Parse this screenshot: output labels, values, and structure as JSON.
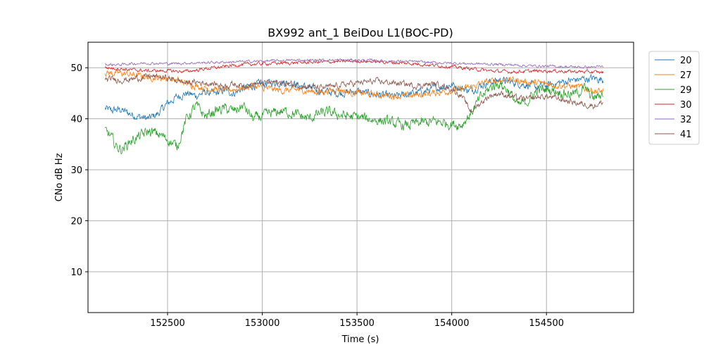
{
  "chart_data": {
    "type": "line",
    "title": "BX992 ant_1 BeiDou L1(BOC-PD)",
    "xlabel": "Time (s)",
    "ylabel": "CNo dB Hz",
    "xlim": [
      152080,
      154960
    ],
    "ylim": [
      2,
      55
    ],
    "xticks": [
      152500,
      153000,
      153500,
      154000,
      154500
    ],
    "yticks": [
      10,
      20,
      30,
      40,
      50
    ],
    "grid": true,
    "legend_position": "outside-right",
    "x_start": 152170,
    "x_end": 154800,
    "series": [
      {
        "name": "20",
        "color": "#1f77b4",
        "points": [
          [
            152170,
            42.0
          ],
          [
            152200,
            41.6
          ],
          [
            152250,
            41.8
          ],
          [
            152300,
            41.0
          ],
          [
            152350,
            40.4
          ],
          [
            152400,
            40.0
          ],
          [
            152450,
            41.0
          ],
          [
            152500,
            43.0
          ],
          [
            152550,
            44.3
          ],
          [
            152600,
            45.0
          ],
          [
            152650,
            44.5
          ],
          [
            152700,
            45.2
          ],
          [
            152750,
            44.8
          ],
          [
            152800,
            45.6
          ],
          [
            152850,
            45.0
          ],
          [
            152900,
            46.0
          ],
          [
            152950,
            46.5
          ],
          [
            153000,
            46.8
          ],
          [
            153050,
            47.0
          ],
          [
            153100,
            47.2
          ],
          [
            153150,
            47.0
          ],
          [
            153200,
            46.5
          ],
          [
            153250,
            46.0
          ],
          [
            153300,
            45.5
          ],
          [
            153350,
            45.2
          ],
          [
            153400,
            45.0
          ],
          [
            153450,
            45.2
          ],
          [
            153500,
            45.4
          ],
          [
            153550,
            45.0
          ],
          [
            153600,
            44.8
          ],
          [
            153650,
            44.5
          ],
          [
            153700,
            44.3
          ],
          [
            153750,
            44.7
          ],
          [
            153800,
            45.0
          ],
          [
            153850,
            45.3
          ],
          [
            153900,
            45.8
          ],
          [
            153950,
            46.3
          ],
          [
            154000,
            46.7
          ],
          [
            154050,
            46.0
          ],
          [
            154100,
            45.5
          ],
          [
            154150,
            46.5
          ],
          [
            154200,
            47.2
          ],
          [
            154250,
            47.6
          ],
          [
            154300,
            47.3
          ],
          [
            154350,
            47.0
          ],
          [
            154400,
            46.6
          ],
          [
            154450,
            46.2
          ],
          [
            154500,
            46.5
          ],
          [
            154550,
            46.9
          ],
          [
            154600,
            47.3
          ],
          [
            154650,
            47.6
          ],
          [
            154700,
            47.8
          ],
          [
            154750,
            47.9
          ],
          [
            154800,
            47.7
          ]
        ],
        "noise": 0.6
      },
      {
        "name": "27",
        "color": "#ff7f0e",
        "points": [
          [
            152170,
            49.0
          ],
          [
            152250,
            48.9
          ],
          [
            152300,
            48.7
          ],
          [
            152350,
            48.4
          ],
          [
            152400,
            48.2
          ],
          [
            152450,
            48.0
          ],
          [
            152500,
            48.0
          ],
          [
            152550,
            47.5
          ],
          [
            152600,
            47.0
          ],
          [
            152650,
            46.5
          ],
          [
            152700,
            46.0
          ],
          [
            152750,
            45.8
          ],
          [
            152800,
            45.5
          ],
          [
            152850,
            45.8
          ],
          [
            152900,
            46.0
          ],
          [
            152950,
            46.5
          ],
          [
            153000,
            46.0
          ],
          [
            153050,
            45.8
          ],
          [
            153100,
            45.5
          ],
          [
            153150,
            45.6
          ],
          [
            153200,
            45.7
          ],
          [
            153250,
            45.4
          ],
          [
            153300,
            45.2
          ],
          [
            153350,
            45.5
          ],
          [
            153400,
            45.8
          ],
          [
            153450,
            45.2
          ],
          [
            153500,
            45.0
          ],
          [
            153550,
            44.9
          ],
          [
            153600,
            44.7
          ],
          [
            153650,
            44.6
          ],
          [
            153700,
            44.5
          ],
          [
            153750,
            44.4
          ],
          [
            153800,
            44.6
          ],
          [
            153850,
            44.8
          ],
          [
            153900,
            45.0
          ],
          [
            153950,
            45.3
          ],
          [
            154000,
            45.5
          ],
          [
            154050,
            45.8
          ],
          [
            154100,
            46.2
          ],
          [
            154150,
            46.8
          ],
          [
            154200,
            47.3
          ],
          [
            154250,
            47.5
          ],
          [
            154300,
            47.7
          ],
          [
            154350,
            47.5
          ],
          [
            154400,
            47.2
          ],
          [
            154450,
            47.0
          ],
          [
            154500,
            46.9
          ],
          [
            154550,
            46.6
          ],
          [
            154600,
            46.5
          ],
          [
            154650,
            46.3
          ],
          [
            154700,
            46.0
          ],
          [
            154750,
            45.5
          ],
          [
            154800,
            45.3
          ]
        ],
        "noise": 0.5
      },
      {
        "name": "29",
        "color": "#2ca02c",
        "points": [
          [
            152170,
            37.8
          ],
          [
            152200,
            36.5
          ],
          [
            152230,
            34.5
          ],
          [
            152260,
            34.0
          ],
          [
            152300,
            35.5
          ],
          [
            152350,
            36.5
          ],
          [
            152400,
            37.5
          ],
          [
            152450,
            37.0
          ],
          [
            152500,
            36.0
          ],
          [
            152550,
            34.5
          ],
          [
            152600,
            40.0
          ],
          [
            152650,
            42.5
          ],
          [
            152700,
            40.5
          ],
          [
            152750,
            41.5
          ],
          [
            152800,
            42.0
          ],
          [
            152850,
            41.5
          ],
          [
            152900,
            42.5
          ],
          [
            152950,
            40.0
          ],
          [
            153000,
            40.5
          ],
          [
            153050,
            41.0
          ],
          [
            153100,
            41.5
          ],
          [
            153150,
            41.2
          ],
          [
            153200,
            40.5
          ],
          [
            153250,
            40.0
          ],
          [
            153300,
            41.0
          ],
          [
            153350,
            41.2
          ],
          [
            153400,
            40.8
          ],
          [
            153450,
            40.5
          ],
          [
            153500,
            40.3
          ],
          [
            153550,
            40.0
          ],
          [
            153600,
            39.8
          ],
          [
            153650,
            39.5
          ],
          [
            153700,
            39.0
          ],
          [
            153750,
            38.6
          ],
          [
            153800,
            39.0
          ],
          [
            153850,
            39.2
          ],
          [
            153900,
            39.4
          ],
          [
            153950,
            39.3
          ],
          [
            154000,
            39.0
          ],
          [
            154050,
            38.8
          ],
          [
            154100,
            41.0
          ],
          [
            154150,
            44.0
          ],
          [
            154200,
            46.0
          ],
          [
            154250,
            47.0
          ],
          [
            154300,
            45.5
          ],
          [
            154350,
            42.5
          ],
          [
            154400,
            43.5
          ],
          [
            154450,
            45.5
          ],
          [
            154500,
            45.8
          ],
          [
            154550,
            45.5
          ],
          [
            154600,
            45.0
          ],
          [
            154650,
            44.8
          ],
          [
            154700,
            46.0
          ],
          [
            154750,
            44.0
          ],
          [
            154800,
            45.0
          ]
        ],
        "noise": 0.8
      },
      {
        "name": "30",
        "color": "#d62728",
        "points": [
          [
            152170,
            50.0
          ],
          [
            152250,
            49.8
          ],
          [
            152300,
            49.6
          ],
          [
            152350,
            49.5
          ],
          [
            152400,
            49.4
          ],
          [
            152450,
            49.4
          ],
          [
            152500,
            49.4
          ],
          [
            152550,
            49.3
          ],
          [
            152600,
            49.3
          ],
          [
            152650,
            49.5
          ],
          [
            152700,
            49.8
          ],
          [
            152750,
            50.0
          ],
          [
            152800,
            50.2
          ],
          [
            152850,
            50.5
          ],
          [
            152900,
            50.6
          ],
          [
            152950,
            50.7
          ],
          [
            153000,
            50.8
          ],
          [
            153100,
            50.9
          ],
          [
            153200,
            51.0
          ],
          [
            153300,
            51.1
          ],
          [
            153400,
            51.2
          ],
          [
            153500,
            51.3
          ],
          [
            153600,
            51.2
          ],
          [
            153700,
            51.0
          ],
          [
            153800,
            50.8
          ],
          [
            153900,
            50.5
          ],
          [
            154000,
            50.2
          ],
          [
            154100,
            49.8
          ],
          [
            154200,
            49.4
          ],
          [
            154300,
            49.2
          ],
          [
            154400,
            49.3
          ],
          [
            154500,
            49.4
          ],
          [
            154600,
            49.3
          ],
          [
            154700,
            49.2
          ],
          [
            154800,
            49.1
          ]
        ],
        "noise": 0.25
      },
      {
        "name": "32",
        "color": "#9467bd",
        "points": [
          [
            152170,
            50.6
          ],
          [
            152250,
            50.6
          ],
          [
            152300,
            50.8
          ],
          [
            152400,
            50.9
          ],
          [
            152500,
            50.8
          ],
          [
            152600,
            50.9
          ],
          [
            152700,
            51.0
          ],
          [
            152800,
            51.1
          ],
          [
            152900,
            51.2
          ],
          [
            153000,
            51.3
          ],
          [
            153100,
            51.4
          ],
          [
            153200,
            51.5
          ],
          [
            153300,
            51.5
          ],
          [
            153400,
            51.5
          ],
          [
            153500,
            51.5
          ],
          [
            153600,
            51.4
          ],
          [
            153700,
            51.3
          ],
          [
            153800,
            51.2
          ],
          [
            153900,
            51.0
          ],
          [
            154000,
            50.9
          ],
          [
            154100,
            50.8
          ],
          [
            154200,
            50.7
          ],
          [
            154300,
            50.6
          ],
          [
            154400,
            50.4
          ],
          [
            154500,
            50.3
          ],
          [
            154600,
            50.2
          ],
          [
            154700,
            50.1
          ],
          [
            154800,
            50.2
          ]
        ],
        "noise": 0.2
      },
      {
        "name": "41",
        "color": "#8c564b",
        "points": [
          [
            152170,
            47.5
          ],
          [
            152200,
            47.8
          ],
          [
            152250,
            47.6
          ],
          [
            152300,
            47.7
          ],
          [
            152350,
            48.0
          ],
          [
            152400,
            48.3
          ],
          [
            152450,
            48.2
          ],
          [
            152500,
            48.0
          ],
          [
            152550,
            47.5
          ],
          [
            152600,
            47.0
          ],
          [
            152650,
            47.2
          ],
          [
            152700,
            47.0
          ],
          [
            152750,
            46.8
          ],
          [
            152800,
            46.5
          ],
          [
            152850,
            46.8
          ],
          [
            152900,
            46.5
          ],
          [
            152950,
            46.8
          ],
          [
            153000,
            47.0
          ],
          [
            153050,
            47.2
          ],
          [
            153100,
            47.0
          ],
          [
            153150,
            46.8
          ],
          [
            153200,
            46.5
          ],
          [
            153250,
            46.3
          ],
          [
            153300,
            46.0
          ],
          [
            153350,
            46.2
          ],
          [
            153400,
            46.5
          ],
          [
            153450,
            46.8
          ],
          [
            153500,
            47.0
          ],
          [
            153550,
            47.2
          ],
          [
            153600,
            47.3
          ],
          [
            153650,
            47.2
          ],
          [
            153700,
            47.0
          ],
          [
            153750,
            46.8
          ],
          [
            153800,
            46.5
          ],
          [
            153850,
            46.6
          ],
          [
            153900,
            46.8
          ],
          [
            153950,
            46.5
          ],
          [
            154000,
            45.8
          ],
          [
            154050,
            44.5
          ],
          [
            154100,
            41.5
          ],
          [
            154150,
            43.0
          ],
          [
            154200,
            44.5
          ],
          [
            154250,
            45.0
          ],
          [
            154300,
            44.5
          ],
          [
            154350,
            44.0
          ],
          [
            154400,
            43.8
          ],
          [
            154450,
            44.2
          ],
          [
            154500,
            44.4
          ],
          [
            154550,
            44.0
          ],
          [
            154600,
            43.6
          ],
          [
            154650,
            43.2
          ],
          [
            154700,
            42.8
          ],
          [
            154750,
            42.6
          ],
          [
            154800,
            43.2
          ]
        ],
        "noise": 0.45
      }
    ]
  }
}
